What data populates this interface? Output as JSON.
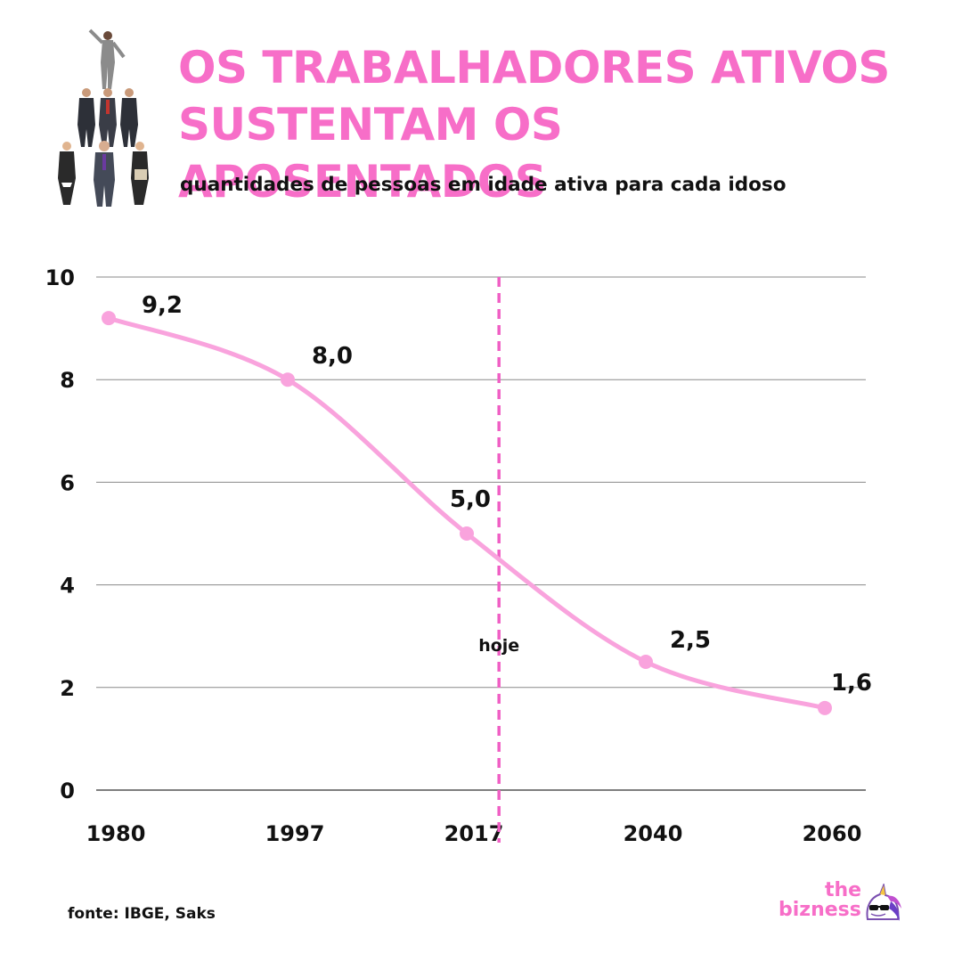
{
  "header": {
    "title_line1": "OS TRABALHADORES ATIVOS",
    "title_line2": "SUSTENTAM OS APOSENTADOS",
    "subtitle": "quantidades de pessoas em idade ativa para cada idoso",
    "accent_color": "#f76ec8"
  },
  "illustration": {
    "icon": "business-people-pyramid"
  },
  "chart_data": {
    "type": "line",
    "title": "",
    "xlabel": "",
    "ylabel": "",
    "x": [
      "1980",
      "1997",
      "2017",
      "2040",
      "2060"
    ],
    "series": [
      {
        "values": [
          9.2,
          8.0,
          5.0,
          2.5,
          1.6
        ],
        "labels": [
          "9,2",
          "8,0",
          "5,0",
          "2,5",
          "1,6"
        ],
        "color": "#f9a3dd"
      }
    ],
    "ylim": [
      0,
      10
    ],
    "yticks": [
      "0",
      "2",
      "4",
      "6",
      "8",
      "10"
    ],
    "grid": true,
    "marker": {
      "label": "hoje",
      "position": "between 2017 and 2040",
      "color": "#f05fc4",
      "style": "dashed"
    }
  },
  "footer": {
    "source": "fonte: IBGE, Saks",
    "brand_the": "the",
    "brand_bizness": "bizness",
    "brand_icon": "unicorn-with-sunglasses"
  }
}
